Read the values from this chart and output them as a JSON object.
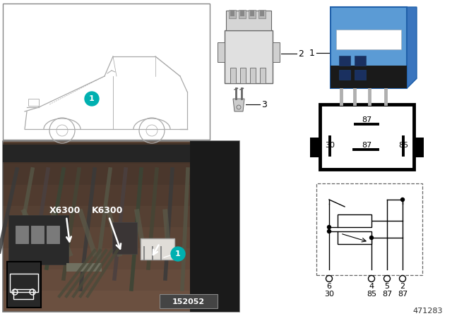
{
  "bg_color": "#ffffff",
  "car_box_color": "#cccccc",
  "car_outline_color": "#aaaaaa",
  "teal_color": "#00b0b0",
  "relay_blue": "#5b9bd5",
  "relay_dark_blue": "#2e6da4",
  "relay_black": "#1a1a1a",
  "relay_metal": "#b0b0b0",
  "photo_bg": "#5a4535",
  "photo_border": "#888888",
  "label1": "1",
  "label2": "2",
  "label3": "3",
  "x6300_label": "X6300",
  "k6300_label": "K6300",
  "diagram_number": "471283",
  "part_number": "152052",
  "pin_row1": [
    "6",
    "4",
    "5",
    "2"
  ],
  "pin_row2": [
    "30",
    "85",
    "87",
    "87"
  ],
  "schematic_border": "#555555",
  "white": "#ffffff",
  "black": "#000000"
}
